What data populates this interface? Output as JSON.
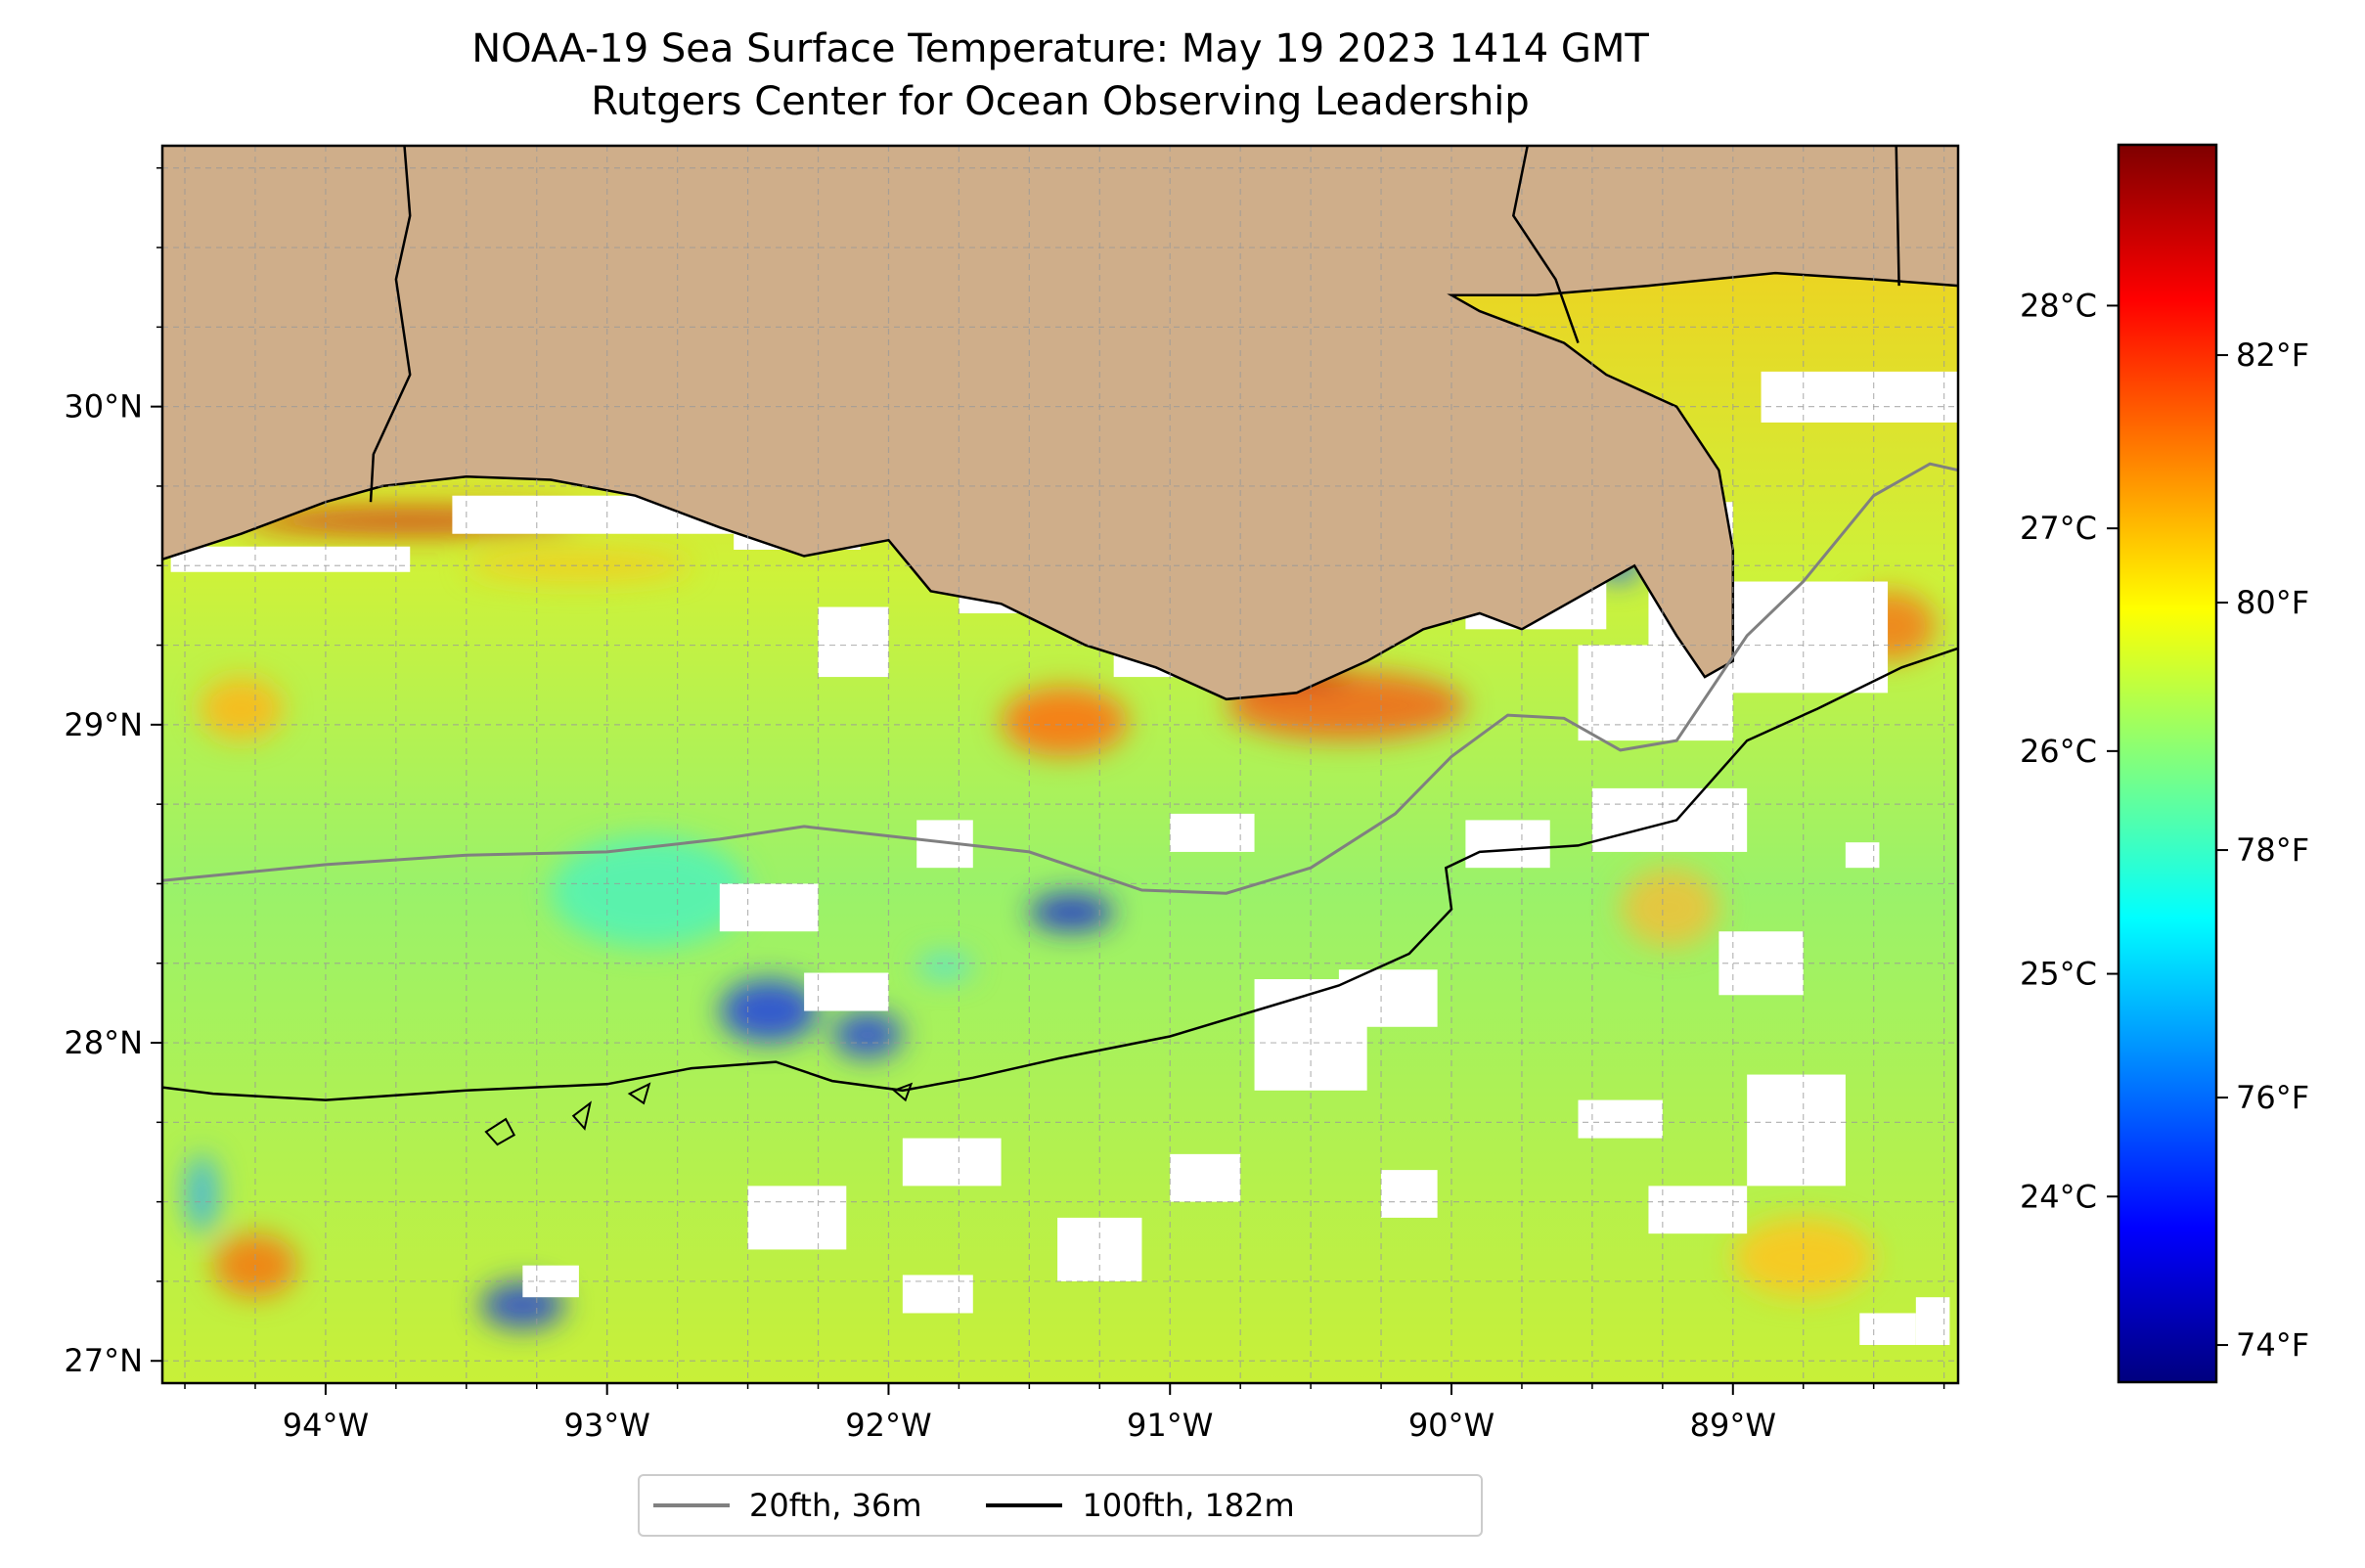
{
  "title": {
    "line1": "NOAA-19 Sea Surface Temperature: May 19 2023 1414 GMT",
    "line2": "Rutgers Center for Ocean Observing Leadership"
  },
  "map": {
    "lon_range": [
      -94.58,
      -88.2
    ],
    "lat_range": [
      26.93,
      30.82
    ],
    "grid": true,
    "x_ticks": [
      {
        "lon": -94,
        "label": "94°W"
      },
      {
        "lon": -93,
        "label": "93°W"
      },
      {
        "lon": -92,
        "label": "92°W"
      },
      {
        "lon": -91,
        "label": "91°W"
      },
      {
        "lon": -90,
        "label": "90°W"
      },
      {
        "lon": -89,
        "label": "89°W"
      }
    ],
    "y_ticks": [
      {
        "lat": 27,
        "label": "27°N"
      },
      {
        "lat": 28,
        "label": "28°N"
      },
      {
        "lat": 29,
        "label": "29°N"
      },
      {
        "lat": 30,
        "label": "30°N"
      }
    ],
    "land_color": "#cfae8a",
    "cloud_color": "#ffffff",
    "isobath_20fth": [
      [
        -94.58,
        28.51
      ],
      [
        -94.0,
        28.56
      ],
      [
        -93.5,
        28.59
      ],
      [
        -93.0,
        28.6
      ],
      [
        -92.6,
        28.64
      ],
      [
        -92.3,
        28.68
      ],
      [
        -91.9,
        28.64
      ],
      [
        -91.5,
        28.6
      ],
      [
        -91.1,
        28.48
      ],
      [
        -90.8,
        28.47
      ],
      [
        -90.5,
        28.55
      ],
      [
        -90.2,
        28.72
      ],
      [
        -90.0,
        28.9
      ],
      [
        -89.8,
        29.03
      ],
      [
        -89.6,
        29.02
      ],
      [
        -89.4,
        28.92
      ],
      [
        -89.2,
        28.95
      ],
      [
        -88.95,
        29.28
      ],
      [
        -88.75,
        29.45
      ],
      [
        -88.5,
        29.72
      ],
      [
        -88.3,
        29.82
      ],
      [
        -88.2,
        29.8
      ]
    ],
    "isobath_100fth": [
      [
        -94.58,
        27.86
      ],
      [
        -94.4,
        27.84
      ],
      [
        -94.0,
        27.82
      ],
      [
        -93.5,
        27.85
      ],
      [
        -93.0,
        27.87
      ],
      [
        -92.7,
        27.92
      ],
      [
        -92.4,
        27.94
      ],
      [
        -92.2,
        27.88
      ],
      [
        -91.95,
        27.85
      ],
      [
        -91.7,
        27.89
      ],
      [
        -91.4,
        27.95
      ],
      [
        -91.0,
        28.02
      ],
      [
        -90.7,
        28.1
      ],
      [
        -90.4,
        28.18
      ],
      [
        -90.15,
        28.28
      ],
      [
        -90.0,
        28.42
      ],
      [
        -90.02,
        28.55
      ],
      [
        -89.9,
        28.6
      ],
      [
        -89.55,
        28.62
      ],
      [
        -89.2,
        28.7
      ],
      [
        -88.95,
        28.95
      ],
      [
        -88.7,
        29.05
      ],
      [
        -88.4,
        29.18
      ],
      [
        -88.2,
        29.24
      ]
    ],
    "coastline": [
      [
        -94.58,
        29.52
      ],
      [
        -94.3,
        29.6
      ],
      [
        -94.0,
        29.7
      ],
      [
        -93.8,
        29.75
      ],
      [
        -93.5,
        29.78
      ],
      [
        -93.2,
        29.77
      ],
      [
        -92.9,
        29.72
      ],
      [
        -92.6,
        29.62
      ],
      [
        -92.3,
        29.53
      ],
      [
        -92.0,
        29.58
      ],
      [
        -91.85,
        29.42
      ],
      [
        -91.6,
        29.38
      ],
      [
        -91.3,
        29.25
      ],
      [
        -91.05,
        29.18
      ],
      [
        -90.8,
        29.08
      ],
      [
        -90.55,
        29.1
      ],
      [
        -90.3,
        29.2
      ],
      [
        -90.1,
        29.3
      ],
      [
        -89.9,
        29.35
      ],
      [
        -89.75,
        29.3
      ],
      [
        -89.55,
        29.4
      ],
      [
        -89.35,
        29.5
      ],
      [
        -89.2,
        29.28
      ],
      [
        -89.1,
        29.15
      ],
      [
        -89.0,
        29.2
      ],
      [
        -89.0,
        29.55
      ],
      [
        -89.05,
        29.8
      ],
      [
        -89.2,
        30.0
      ],
      [
        -89.45,
        30.1
      ],
      [
        -89.6,
        30.2
      ],
      [
        -89.9,
        30.3
      ],
      [
        -90.0,
        30.35
      ],
      [
        -89.7,
        30.35
      ],
      [
        -89.3,
        30.38
      ],
      [
        -88.85,
        30.42
      ],
      [
        -88.5,
        30.4
      ],
      [
        -88.2,
        30.38
      ]
    ],
    "state_lines": [
      [
        [
          -93.72,
          30.82
        ],
        [
          -93.7,
          30.6
        ],
        [
          -93.75,
          30.4
        ],
        [
          -93.7,
          30.1
        ],
        [
          -93.83,
          29.85
        ],
        [
          -93.84,
          29.7
        ]
      ],
      [
        [
          -89.73,
          30.82
        ],
        [
          -89.78,
          30.6
        ],
        [
          -89.63,
          30.4
        ],
        [
          -89.55,
          30.2
        ]
      ],
      [
        [
          -88.42,
          30.82
        ],
        [
          -88.41,
          30.38
        ]
      ]
    ],
    "islands": [
      [
        [
          -93.43,
          27.72
        ],
        [
          -93.36,
          27.76
        ],
        [
          -93.33,
          27.71
        ],
        [
          -93.39,
          27.68
        ]
      ],
      [
        [
          -93.12,
          27.77
        ],
        [
          -93.06,
          27.81
        ],
        [
          -93.08,
          27.73
        ]
      ],
      [
        [
          -92.92,
          27.84
        ],
        [
          -92.85,
          27.87
        ],
        [
          -92.87,
          27.81
        ]
      ],
      [
        [
          -91.98,
          27.85
        ],
        [
          -91.92,
          27.87
        ],
        [
          -91.94,
          27.82
        ]
      ]
    ],
    "clouds": [
      [
        -94.55,
        29.48,
        0.85,
        0.08
      ],
      [
        -93.55,
        29.6,
        1.0,
        0.12
      ],
      [
        -92.55,
        29.55,
        0.45,
        0.08
      ],
      [
        -91.75,
        29.35,
        0.45,
        0.22
      ],
      [
        -92.25,
        29.15,
        0.25,
        0.22
      ],
      [
        -91.2,
        29.15,
        0.25,
        0.12
      ],
      [
        -89.95,
        29.3,
        0.5,
        0.25
      ],
      [
        -89.3,
        29.25,
        0.3,
        0.45
      ],
      [
        -89.05,
        29.1,
        0.6,
        0.35
      ],
      [
        -88.9,
        29.95,
        0.7,
        0.16
      ],
      [
        -89.55,
        28.95,
        0.55,
        0.3
      ],
      [
        -89.5,
        28.6,
        0.55,
        0.2
      ],
      [
        -89.95,
        28.55,
        0.3,
        0.15
      ],
      [
        -91.0,
        28.6,
        0.3,
        0.12
      ],
      [
        -91.9,
        28.55,
        0.2,
        0.15
      ],
      [
        -92.6,
        28.35,
        0.35,
        0.15
      ],
      [
        -92.3,
        28.1,
        0.3,
        0.12
      ],
      [
        -90.7,
        27.85,
        0.4,
        0.35
      ],
      [
        -90.4,
        28.05,
        0.35,
        0.18
      ],
      [
        -89.05,
        28.15,
        0.3,
        0.2
      ],
      [
        -88.95,
        27.55,
        0.35,
        0.35
      ],
      [
        -89.55,
        27.7,
        0.3,
        0.12
      ],
      [
        -89.3,
        27.4,
        0.35,
        0.15
      ],
      [
        -91.95,
        27.55,
        0.35,
        0.15
      ],
      [
        -92.5,
        27.35,
        0.35,
        0.2
      ],
      [
        -91.4,
        27.25,
        0.3,
        0.2
      ],
      [
        -90.25,
        27.45,
        0.2,
        0.15
      ],
      [
        -91.0,
        27.5,
        0.25,
        0.15
      ],
      [
        -93.3,
        27.2,
        0.2,
        0.1
      ],
      [
        -91.95,
        27.15,
        0.25,
        0.12
      ],
      [
        -88.55,
        27.05,
        0.2,
        0.1
      ],
      [
        -88.35,
        27.05,
        0.12,
        0.15
      ],
      [
        -88.6,
        28.55,
        0.12,
        0.08
      ]
    ],
    "warm_zones": [
      [
        -90.8,
        28.95,
        0.85,
        0.22,
        "#f26414"
      ],
      [
        -91.6,
        28.9,
        0.45,
        0.22,
        "#ff6e0a"
      ],
      [
        -88.6,
        29.2,
        0.32,
        0.22,
        "#f57a18"
      ],
      [
        -94.4,
        27.2,
        0.3,
        0.2,
        "#f77510"
      ],
      [
        -93.5,
        29.45,
        0.8,
        0.1,
        "#f2cc20"
      ],
      [
        -94.45,
        28.95,
        0.3,
        0.2,
        "#ffb51a"
      ],
      [
        -89.0,
        27.2,
        0.5,
        0.25,
        "#ffc41e"
      ],
      [
        -90.8,
        29.12,
        0.45,
        0.06,
        "#c81b0e"
      ],
      [
        -94.3,
        29.6,
        1.2,
        0.08,
        "#d2300f"
      ],
      [
        -89.4,
        28.3,
        0.35,
        0.25,
        "#f0c03a"
      ]
    ],
    "cool_zones": [
      [
        -93.2,
        28.3,
        0.7,
        0.35,
        "#4ff2b8"
      ],
      [
        -92.6,
        28.0,
        0.35,
        0.2,
        "#1f3fe0"
      ],
      [
        -92.2,
        27.95,
        0.25,
        0.15,
        "#2a49d6"
      ],
      [
        -91.5,
        28.35,
        0.3,
        0.12,
        "#1d2fcc"
      ],
      [
        -93.45,
        27.1,
        0.3,
        0.15,
        "#2346d2"
      ],
      [
        -89.5,
        29.45,
        0.18,
        0.1,
        "#2a6de8"
      ],
      [
        -94.5,
        27.4,
        0.12,
        0.25,
        "#3bb2e8"
      ],
      [
        -91.9,
        28.2,
        0.2,
        0.08,
        "#52e0d8"
      ]
    ]
  },
  "colorbar": {
    "min_f": 73.7,
    "max_f": 83.7,
    "stops": [
      "#00007f",
      "#0000ff",
      "#007fff",
      "#00ffff",
      "#7fff7f",
      "#ffff00",
      "#ff7f00",
      "#ff0000",
      "#7f0000"
    ],
    "celsius_ticks": [
      {
        "c": 24,
        "label": "24°C"
      },
      {
        "c": 25,
        "label": "25°C"
      },
      {
        "c": 26,
        "label": "26°C"
      },
      {
        "c": 27,
        "label": "27°C"
      },
      {
        "c": 28,
        "label": "28°C"
      }
    ],
    "fahrenheit_ticks": [
      {
        "f": 74,
        "label": "74°F"
      },
      {
        "f": 76,
        "label": "76°F"
      },
      {
        "f": 78,
        "label": "78°F"
      },
      {
        "f": 80,
        "label": "80°F"
      },
      {
        "f": 82,
        "label": "82°F"
      }
    ]
  },
  "legend": {
    "items": [
      {
        "label": "20fth, 36m",
        "color": "#808080"
      },
      {
        "label": "100fth, 182m",
        "color": "#000000"
      }
    ]
  }
}
